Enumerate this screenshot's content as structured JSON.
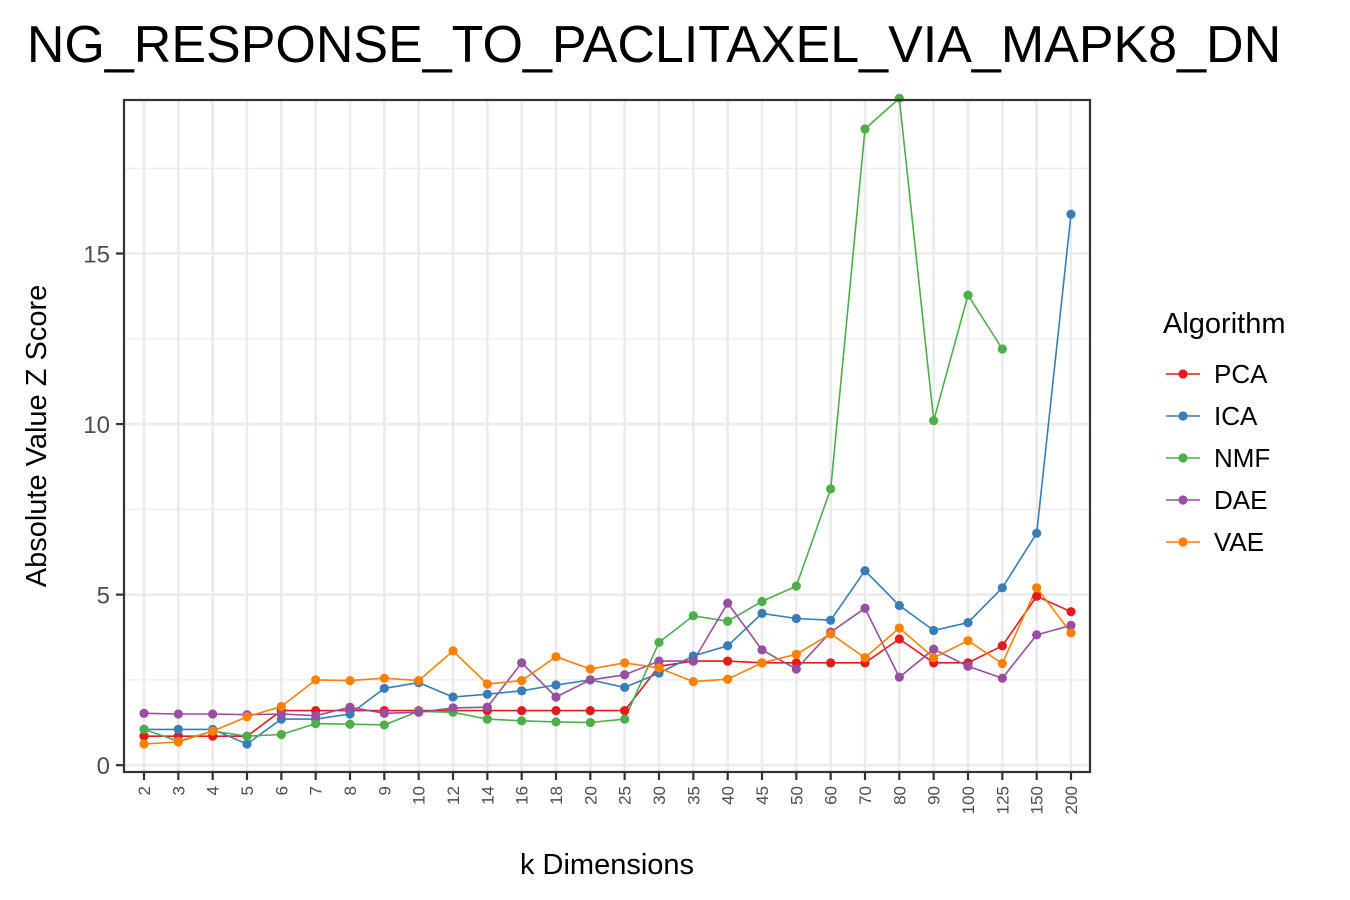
{
  "chart_data": {
    "type": "line",
    "title": "NG_RESPONSE_TO_PACLITAXEL_VIA_MAPK8_DN",
    "xlabel": "k Dimensions",
    "ylabel": "Absolute Value Z Score",
    "ylim": [
      -0.2,
      19.5
    ],
    "yticks": [
      0,
      5,
      10,
      15
    ],
    "ytick_labels": [
      "0",
      "5",
      "10",
      "15"
    ],
    "categories": [
      "2",
      "3",
      "4",
      "5",
      "6",
      "7",
      "8",
      "9",
      "10",
      "12",
      "14",
      "16",
      "18",
      "20",
      "25",
      "30",
      "35",
      "40",
      "45",
      "50",
      "60",
      "70",
      "80",
      "90",
      "100",
      "125",
      "150",
      "200"
    ],
    "legend_title": "Algorithm",
    "legend_position": "right",
    "grid": true,
    "series": [
      {
        "name": "PCA",
        "color": "#e41a1c",
        "values": [
          0.85,
          0.85,
          0.85,
          0.85,
          1.6,
          1.6,
          1.6,
          1.6,
          1.6,
          1.6,
          1.6,
          1.6,
          1.6,
          1.6,
          1.6,
          2.9,
          3.05,
          3.05,
          3.0,
          3.0,
          3.0,
          3.0,
          3.7,
          3.0,
          3.0,
          3.5,
          4.95,
          4.5
        ]
      },
      {
        "name": "ICA",
        "color": "#377eb8",
        "values": [
          1.05,
          1.05,
          1.05,
          0.62,
          1.35,
          1.35,
          1.5,
          2.25,
          2.42,
          2.0,
          2.08,
          2.18,
          2.35,
          2.5,
          2.28,
          2.7,
          3.2,
          3.5,
          4.45,
          4.3,
          4.25,
          5.7,
          4.68,
          3.95,
          4.18,
          5.2,
          6.8,
          16.15
        ]
      },
      {
        "name": "NMF",
        "color": "#4daf4a",
        "values": [
          1.05,
          0.7,
          1.0,
          0.85,
          0.9,
          1.22,
          1.2,
          1.18,
          1.58,
          1.55,
          1.35,
          1.3,
          1.27,
          1.25,
          1.35,
          3.6,
          4.38,
          4.22,
          4.8,
          5.25,
          8.1,
          18.65,
          19.55,
          10.1,
          13.78,
          12.2,
          null,
          null
        ]
      },
      {
        "name": "DAE",
        "color": "#984ea3",
        "values": [
          1.52,
          1.5,
          1.5,
          1.48,
          1.5,
          1.45,
          1.7,
          1.52,
          1.55,
          1.68,
          1.7,
          3.0,
          2.0,
          2.5,
          2.65,
          3.05,
          3.05,
          4.75,
          3.38,
          2.82,
          3.9,
          4.6,
          2.58,
          3.4,
          2.9,
          2.55,
          3.82,
          4.1
        ]
      },
      {
        "name": "VAE",
        "color": "#ff7f00",
        "values": [
          0.62,
          0.68,
          1.0,
          1.42,
          1.72,
          2.5,
          2.48,
          2.55,
          2.48,
          3.35,
          2.38,
          2.48,
          3.18,
          2.82,
          3.0,
          2.85,
          2.45,
          2.52,
          3.0,
          3.25,
          3.85,
          3.15,
          4.02,
          3.15,
          3.65,
          2.98,
          5.2,
          3.88
        ]
      }
    ]
  }
}
